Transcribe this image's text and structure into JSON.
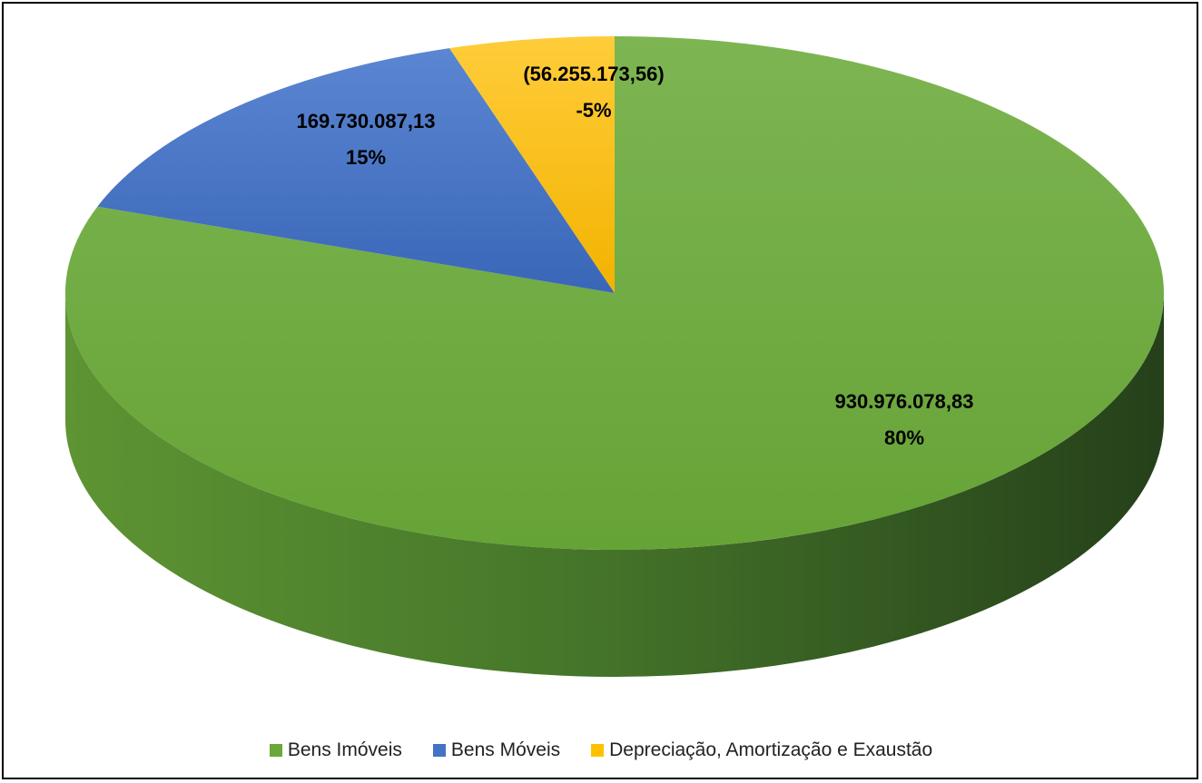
{
  "chart_data": {
    "type": "pie",
    "style": "3d",
    "slices": [
      {
        "name": "Bens Imóveis",
        "value": 930976078.83,
        "value_label": "930.976.078,83",
        "percent_label": "80%",
        "color": "#6aa83a",
        "side_color": "#3f6a22"
      },
      {
        "name": "Bens Móveis",
        "value": 169730087.13,
        "value_label": "169.730.087,13",
        "percent_label": "15%",
        "color": "#4472c4",
        "side_color": "#2b4f8c"
      },
      {
        "name": "Depreciação, Amortização e Exaustão",
        "value": -56255173.56,
        "value_label": "(56.255.173,56)",
        "percent_label": "-5%",
        "color": "#ffc000",
        "side_color": "#b38600"
      }
    ],
    "legend": {
      "position": "bottom",
      "items": [
        "Bens Imóveis",
        "Bens Móveis",
        "Depreciação, Amortização e Exaustão"
      ]
    }
  }
}
